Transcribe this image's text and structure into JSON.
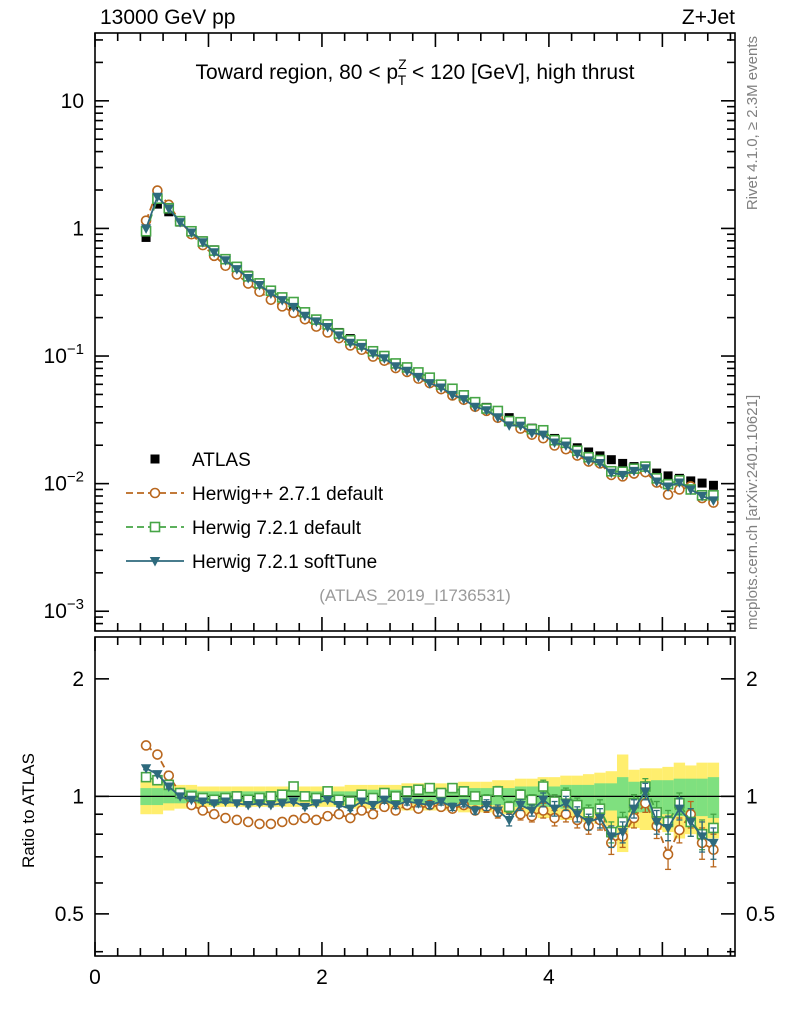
{
  "header": {
    "left": "13000 GeV pp",
    "right": "Z+Jet"
  },
  "panel_title": {
    "pre": "Toward region, 80 < p",
    "sup": "Z",
    "sub": "T",
    "post": " < 120 [GeV], high thrust"
  },
  "watermark": "(ATLAS_2019_I1736531)",
  "side_notes": {
    "top": "Rivet 4.1.0, ≥ 2.3M events",
    "bottom": "mcplots.cern.ch [arXiv:2401.10621]"
  },
  "ratio_ylabel": "Ratio to ATLAS",
  "colors": {
    "atlas": "#000000",
    "herwigpp_271": "#b9671e",
    "herwig_721_default": "#46a546",
    "herwig_721_softtune": "#2e6a7d",
    "band_yellow": "#ffee6e",
    "band_green": "#7fe07f"
  },
  "legend": [
    {
      "label": "ATLAS",
      "marker": "filled-square",
      "color": "#000000",
      "line": "none"
    },
    {
      "label": "Herwig++ 2.7.1 default",
      "marker": "open-circle",
      "color": "#b9671e",
      "line": "dashed"
    },
    {
      "label": "Herwig 7.2.1 default",
      "marker": "open-square",
      "color": "#46a546",
      "line": "dashed"
    },
    {
      "label": "Herwig 7.2.1 softTune",
      "marker": "filled-triangle-down",
      "color": "#2e6a7d",
      "line": "solid"
    }
  ],
  "chart_data": [
    {
      "type": "line",
      "title": "Toward region, 80 < pT(Z) < 120 [GeV], high thrust",
      "yscale": "log",
      "ylim": [
        0.0007,
        34
      ],
      "xlim": [
        0,
        5.64
      ],
      "yticks": {
        "values": [
          10,
          1,
          0.1,
          0.01,
          0.001
        ],
        "labels": [
          "10",
          "1",
          "10^-1",
          "10^-2",
          "10^-3"
        ]
      },
      "xticks": {
        "values": [
          0,
          2,
          4
        ],
        "labels": [
          "0",
          "2",
          "4"
        ]
      },
      "x": [
        0.45,
        0.55,
        0.65,
        0.75,
        0.85,
        0.95,
        1.05,
        1.15,
        1.25,
        1.35,
        1.45,
        1.55,
        1.65,
        1.75,
        1.85,
        1.95,
        2.05,
        2.15,
        2.25,
        2.35,
        2.45,
        2.55,
        2.65,
        2.75,
        2.85,
        2.95,
        3.05,
        3.15,
        3.25,
        3.35,
        3.45,
        3.55,
        3.65,
        3.75,
        3.85,
        3.95,
        4.05,
        4.15,
        4.25,
        4.35,
        4.45,
        4.55,
        4.65,
        4.75,
        4.85,
        4.95,
        5.05,
        5.15,
        5.25,
        5.35,
        5.45
      ],
      "series": [
        {
          "name": "ATLAS",
          "values": [
            0.85,
            1.55,
            1.35,
            1.12,
            0.95,
            0.8,
            0.68,
            0.58,
            0.5,
            0.43,
            0.375,
            0.325,
            0.285,
            0.25,
            0.22,
            0.195,
            0.172,
            0.153,
            0.137,
            0.122,
            0.11,
            0.098,
            0.0875,
            0.079,
            0.0715,
            0.0645,
            0.0585,
            0.0528,
            0.0478,
            0.0435,
            0.0396,
            0.036,
            0.0329,
            0.03,
            0.0272,
            0.0247,
            0.0226,
            0.0207,
            0.0191,
            0.0177,
            0.0165,
            0.0154,
            0.0144,
            0.0136,
            0.0128,
            0.0121,
            0.0115,
            0.011,
            0.0105,
            0.0101,
            0.0097
          ]
        },
        {
          "name": "Herwig++ 2.7.1 default",
          "values": [
            1.15,
            1.98,
            1.53,
            1.14,
            0.9,
            0.74,
            0.61,
            0.51,
            0.435,
            0.37,
            0.319,
            0.276,
            0.245,
            0.218,
            0.194,
            0.17,
            0.153,
            0.138,
            0.121,
            0.112,
            0.099,
            0.092,
            0.0805,
            0.0751,
            0.0665,
            0.0613,
            0.055,
            0.0491,
            0.0454,
            0.04,
            0.0372,
            0.0328,
            0.0306,
            0.027,
            0.0242,
            0.0227,
            0.0199,
            0.0186,
            0.0166,
            0.0149,
            0.0144,
            0.0117,
            0.0114,
            0.012,
            0.0123,
            0.0102,
            0.0082,
            0.009,
            0.0095,
            0.0077,
            0.0071
          ]
        },
        {
          "name": "Herwig 7.2.1 default",
          "values": [
            0.95,
            1.71,
            1.44,
            1.14,
            0.95,
            0.79,
            0.67,
            0.574,
            0.5,
            0.421,
            0.371,
            0.325,
            0.288,
            0.265,
            0.22,
            0.193,
            0.177,
            0.15,
            0.133,
            0.123,
            0.109,
            0.1,
            0.0875,
            0.0814,
            0.0744,
            0.0677,
            0.0597,
            0.0554,
            0.0492,
            0.0435,
            0.0388,
            0.0371,
            0.0309,
            0.0303,
            0.0267,
            0.0262,
            0.0219,
            0.0209,
            0.0181,
            0.0161,
            0.0153,
            0.0125,
            0.0124,
            0.0131,
            0.0136,
            0.011,
            0.0099,
            0.0106,
            0.009,
            0.0081,
            0.0081
          ]
        },
        {
          "name": "Herwig 7.2.1 softTune",
          "values": [
            1.0,
            1.77,
            1.43,
            1.12,
            0.93,
            0.78,
            0.65,
            0.563,
            0.48,
            0.409,
            0.36,
            0.309,
            0.274,
            0.243,
            0.207,
            0.187,
            0.169,
            0.145,
            0.127,
            0.118,
            0.105,
            0.096,
            0.0831,
            0.0766,
            0.0686,
            0.0613,
            0.0567,
            0.0496,
            0.0459,
            0.04,
            0.0376,
            0.0331,
            0.0286,
            0.0285,
            0.025,
            0.0242,
            0.021,
            0.0199,
            0.0172,
            0.0152,
            0.0145,
            0.0122,
            0.0117,
            0.0126,
            0.0132,
            0.0104,
            0.0095,
            0.0102,
            0.009,
            0.008,
            0.0074
          ]
        }
      ]
    },
    {
      "type": "line",
      "title": "Ratio to ATLAS",
      "yscale": "log",
      "ylim": [
        0.39,
        2.56
      ],
      "yticks": {
        "values": [
          2,
          1,
          0.5
        ],
        "labels": [
          "2",
          "1",
          "0.5"
        ]
      },
      "yminor": [
        0.4,
        0.6,
        0.7,
        0.8,
        0.9
      ],
      "reference_line": 1,
      "point_err": [
        0.01,
        0.01,
        0.01,
        0.01,
        0.01,
        0.01,
        0.01,
        0.01,
        0.01,
        0.01,
        0.01,
        0.01,
        0.01,
        0.01,
        0.01,
        0.01,
        0.01,
        0.01,
        0.01,
        0.01,
        0.02,
        0.02,
        0.02,
        0.02,
        0.02,
        0.02,
        0.02,
        0.02,
        0.02,
        0.02,
        0.03,
        0.03,
        0.03,
        0.03,
        0.03,
        0.04,
        0.04,
        0.04,
        0.04,
        0.04,
        0.05,
        0.05,
        0.05,
        0.05,
        0.05,
        0.06,
        0.06,
        0.06,
        0.07,
        0.07,
        0.07
      ],
      "bands": {
        "center": 1,
        "yellow_halfwidth": [
          0.1,
          0.1,
          0.08,
          0.07,
          0.07,
          0.06,
          0.06,
          0.06,
          0.06,
          0.06,
          0.06,
          0.06,
          0.06,
          0.06,
          0.06,
          0.06,
          0.06,
          0.06,
          0.07,
          0.07,
          0.07,
          0.07,
          0.07,
          0.08,
          0.08,
          0.08,
          0.08,
          0.08,
          0.09,
          0.09,
          0.09,
          0.1,
          0.1,
          0.11,
          0.11,
          0.12,
          0.12,
          0.13,
          0.13,
          0.14,
          0.15,
          0.16,
          0.28,
          0.17,
          0.18,
          0.18,
          0.19,
          0.22,
          0.2,
          0.22,
          0.22
        ],
        "green_halfwidth": [
          0.05,
          0.05,
          0.04,
          0.04,
          0.04,
          0.03,
          0.03,
          0.03,
          0.03,
          0.03,
          0.03,
          0.03,
          0.03,
          0.03,
          0.03,
          0.03,
          0.03,
          0.03,
          0.03,
          0.03,
          0.04,
          0.04,
          0.04,
          0.04,
          0.04,
          0.04,
          0.04,
          0.04,
          0.05,
          0.05,
          0.05,
          0.05,
          0.05,
          0.06,
          0.06,
          0.06,
          0.06,
          0.07,
          0.07,
          0.07,
          0.08,
          0.08,
          0.12,
          0.09,
          0.09,
          0.1,
          0.1,
          0.11,
          0.11,
          0.11,
          0.12
        ]
      },
      "series": [
        {
          "name": "Herwig++ 2.7.1 default",
          "values": [
            1.35,
            1.28,
            1.13,
            1.02,
            0.95,
            0.92,
            0.9,
            0.88,
            0.87,
            0.86,
            0.85,
            0.85,
            0.86,
            0.87,
            0.88,
            0.87,
            0.89,
            0.9,
            0.88,
            0.92,
            0.9,
            0.94,
            0.92,
            0.95,
            0.93,
            0.95,
            0.94,
            0.93,
            0.95,
            0.92,
            0.94,
            0.91,
            0.93,
            0.9,
            0.89,
            0.92,
            0.88,
            0.9,
            0.87,
            0.84,
            0.87,
            0.76,
            0.79,
            0.88,
            0.96,
            0.84,
            0.71,
            0.82,
            0.9,
            0.76,
            0.73
          ]
        },
        {
          "name": "Herwig 7.2.1 default",
          "values": [
            1.12,
            1.1,
            1.07,
            1.02,
            1.0,
            0.99,
            0.98,
            0.99,
            1.0,
            0.98,
            0.99,
            1.0,
            1.01,
            1.06,
            1.0,
            0.99,
            1.03,
            0.98,
            0.97,
            1.01,
            0.99,
            1.02,
            1.0,
            1.03,
            1.04,
            1.05,
            1.02,
            1.05,
            1.03,
            1.0,
            0.98,
            1.03,
            0.94,
            1.01,
            0.98,
            1.06,
            0.97,
            1.01,
            0.95,
            0.91,
            0.93,
            0.81,
            0.86,
            0.96,
            1.06,
            0.91,
            0.86,
            0.96,
            0.86,
            0.8,
            0.83
          ]
        },
        {
          "name": "Herwig 7.2.1 softTune",
          "values": [
            1.18,
            1.14,
            1.06,
            1.0,
            0.98,
            0.97,
            0.96,
            0.97,
            0.96,
            0.95,
            0.96,
            0.95,
            0.96,
            0.97,
            0.94,
            0.96,
            0.98,
            0.95,
            0.93,
            0.97,
            0.95,
            0.98,
            0.95,
            0.97,
            0.96,
            0.95,
            0.97,
            0.94,
            0.96,
            0.92,
            0.95,
            0.92,
            0.87,
            0.95,
            0.92,
            0.98,
            0.93,
            0.96,
            0.9,
            0.86,
            0.88,
            0.79,
            0.81,
            0.93,
            1.03,
            0.86,
            0.83,
            0.93,
            0.86,
            0.79,
            0.76
          ]
        }
      ]
    }
  ]
}
